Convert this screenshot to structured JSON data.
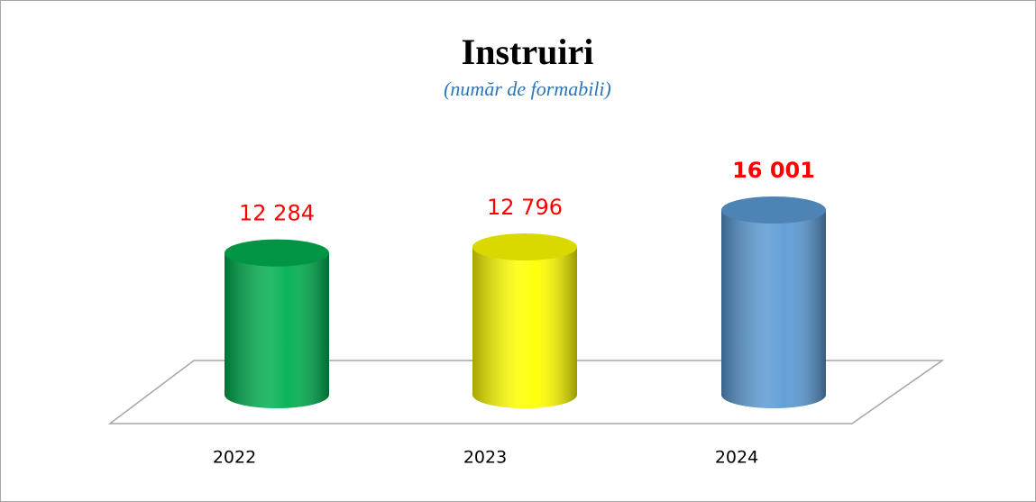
{
  "chart_data": {
    "type": "cylinder",
    "title": "Instruiri",
    "subtitle": "(număr de formabili)",
    "categories": [
      "2022",
      "2023",
      "2024"
    ],
    "values": [
      12284,
      12796,
      16001
    ],
    "value_labels": [
      "12 284",
      "12 796",
      "16 001"
    ],
    "colors": [
      "#00b050",
      "#ffff00",
      "#5b9bd5"
    ],
    "label_color": "#ff0000",
    "label_bold": [
      false,
      false,
      true
    ]
  }
}
